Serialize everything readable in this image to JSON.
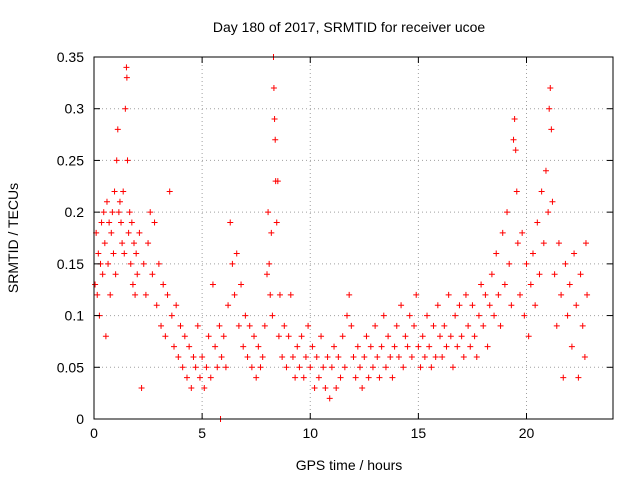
{
  "chart_data": {
    "type": "scatter",
    "title": "Day 180 of 2017, SRMTID for receiver ucoe",
    "xlabel": "GPS time / hours",
    "ylabel": "SRMTID / TECUs",
    "xlim": [
      0,
      24
    ],
    "ylim": [
      0,
      0.35
    ],
    "xticks": [
      0,
      5,
      10,
      15,
      20
    ],
    "yticks": [
      0,
      0.05,
      0.1,
      0.15,
      0.2,
      0.25,
      0.3,
      0.35
    ],
    "xtick_labels": [
      "0",
      "5",
      "10",
      "15",
      "20"
    ],
    "ytick_labels": [
      "0",
      "0.05",
      "0.1",
      "0.15",
      "0.2",
      "0.25",
      "0.3",
      "0.35"
    ],
    "grid": true,
    "marker": "+",
    "color": "#ff0000",
    "series": [
      {
        "name": "SRMTID",
        "points": [
          [
            0.05,
            0.13
          ],
          [
            0.1,
            0.18
          ],
          [
            0.15,
            0.12
          ],
          [
            0.2,
            0.16
          ],
          [
            0.25,
            0.1
          ],
          [
            0.3,
            0.15
          ],
          [
            0.35,
            0.19
          ],
          [
            0.4,
            0.14
          ],
          [
            0.45,
            0.2
          ],
          [
            0.5,
            0.17
          ],
          [
            0.55,
            0.08
          ],
          [
            0.6,
            0.21
          ],
          [
            0.65,
            0.15
          ],
          [
            0.7,
            0.19
          ],
          [
            0.75,
            0.12
          ],
          [
            0.8,
            0.18
          ],
          [
            0.85,
            0.2
          ],
          [
            0.9,
            0.16
          ],
          [
            0.95,
            0.22
          ],
          [
            1.0,
            0.14
          ],
          [
            1.05,
            0.25
          ],
          [
            1.1,
            0.28
          ],
          [
            1.15,
            0.2
          ],
          [
            1.2,
            0.21
          ],
          [
            1.25,
            0.19
          ],
          [
            1.3,
            0.17
          ],
          [
            1.35,
            0.22
          ],
          [
            1.4,
            0.16
          ],
          [
            1.45,
            0.3
          ],
          [
            1.5,
            0.34
          ],
          [
            1.52,
            0.33
          ],
          [
            1.55,
            0.25
          ],
          [
            1.6,
            0.18
          ],
          [
            1.65,
            0.2
          ],
          [
            1.7,
            0.15
          ],
          [
            1.75,
            0.19
          ],
          [
            1.8,
            0.13
          ],
          [
            1.85,
            0.17
          ],
          [
            1.9,
            0.12
          ],
          [
            1.95,
            0.16
          ],
          [
            2.0,
            0.14
          ],
          [
            2.1,
            0.18
          ],
          [
            2.2,
            0.03
          ],
          [
            2.3,
            0.15
          ],
          [
            2.4,
            0.12
          ],
          [
            2.5,
            0.17
          ],
          [
            2.6,
            0.2
          ],
          [
            2.7,
            0.14
          ],
          [
            2.8,
            0.19
          ],
          [
            2.9,
            0.11
          ],
          [
            3.0,
            0.15
          ],
          [
            3.1,
            0.09
          ],
          [
            3.2,
            0.13
          ],
          [
            3.3,
            0.08
          ],
          [
            3.4,
            0.12
          ],
          [
            3.5,
            0.22
          ],
          [
            3.6,
            0.1
          ],
          [
            3.7,
            0.07
          ],
          [
            3.8,
            0.11
          ],
          [
            3.9,
            0.06
          ],
          [
            4.0,
            0.09
          ],
          [
            4.1,
            0.05
          ],
          [
            4.2,
            0.08
          ],
          [
            4.3,
            0.04
          ],
          [
            4.4,
            0.07
          ],
          [
            4.5,
            0.03
          ],
          [
            4.6,
            0.06
          ],
          [
            4.7,
            0.05
          ],
          [
            4.8,
            0.09
          ],
          [
            4.9,
            0.04
          ],
          [
            5.0,
            0.06
          ],
          [
            5.1,
            0.03
          ],
          [
            5.2,
            0.05
          ],
          [
            5.3,
            0.08
          ],
          [
            5.4,
            0.04
          ],
          [
            5.5,
            0.13
          ],
          [
            5.6,
            0.07
          ],
          [
            5.7,
            0.05
          ],
          [
            5.8,
            0.09
          ],
          [
            5.85,
            0.0
          ],
          [
            5.9,
            0.06
          ],
          [
            6.0,
            0.08
          ],
          [
            6.1,
            0.05
          ],
          [
            6.2,
            0.11
          ],
          [
            6.3,
            0.19
          ],
          [
            6.4,
            0.15
          ],
          [
            6.5,
            0.12
          ],
          [
            6.6,
            0.16
          ],
          [
            6.7,
            0.09
          ],
          [
            6.8,
            0.13
          ],
          [
            6.9,
            0.07
          ],
          [
            7.0,
            0.1
          ],
          [
            7.1,
            0.06
          ],
          [
            7.2,
            0.09
          ],
          [
            7.3,
            0.05
          ],
          [
            7.4,
            0.08
          ],
          [
            7.5,
            0.04
          ],
          [
            7.6,
            0.07
          ],
          [
            7.7,
            0.05
          ],
          [
            7.8,
            0.06
          ],
          [
            7.9,
            0.09
          ],
          [
            8.0,
            0.14
          ],
          [
            8.05,
            0.2
          ],
          [
            8.1,
            0.15
          ],
          [
            8.15,
            0.12
          ],
          [
            8.2,
            0.18
          ],
          [
            8.25,
            0.1
          ],
          [
            8.3,
            0.35
          ],
          [
            8.32,
            0.32
          ],
          [
            8.35,
            0.29
          ],
          [
            8.38,
            0.27
          ],
          [
            8.4,
            0.23
          ],
          [
            8.45,
            0.19
          ],
          [
            8.5,
            0.23
          ],
          [
            8.55,
            0.08
          ],
          [
            8.6,
            0.12
          ],
          [
            8.7,
            0.06
          ],
          [
            8.8,
            0.09
          ],
          [
            8.9,
            0.05
          ],
          [
            9.0,
            0.08
          ],
          [
            9.1,
            0.12
          ],
          [
            9.2,
            0.06
          ],
          [
            9.3,
            0.04
          ],
          [
            9.4,
            0.07
          ],
          [
            9.5,
            0.05
          ],
          [
            9.6,
            0.08
          ],
          [
            9.7,
            0.04
          ],
          [
            9.8,
            0.06
          ],
          [
            9.9,
            0.09
          ],
          [
            10.0,
            0.05
          ],
          [
            10.1,
            0.07
          ],
          [
            10.2,
            0.03
          ],
          [
            10.3,
            0.06
          ],
          [
            10.4,
            0.04
          ],
          [
            10.5,
            0.08
          ],
          [
            10.6,
            0.05
          ],
          [
            10.7,
            0.03
          ],
          [
            10.8,
            0.06
          ],
          [
            10.9,
            0.02
          ],
          [
            11.0,
            0.05
          ],
          [
            11.1,
            0.07
          ],
          [
            11.2,
            0.03
          ],
          [
            11.3,
            0.06
          ],
          [
            11.4,
            0.04
          ],
          [
            11.5,
            0.08
          ],
          [
            11.6,
            0.05
          ],
          [
            11.7,
            0.1
          ],
          [
            11.8,
            0.12
          ],
          [
            11.9,
            0.09
          ],
          [
            12.0,
            0.06
          ],
          [
            12.1,
            0.04
          ],
          [
            12.2,
            0.07
          ],
          [
            12.3,
            0.05
          ],
          [
            12.4,
            0.03
          ],
          [
            12.5,
            0.06
          ],
          [
            12.6,
            0.08
          ],
          [
            12.7,
            0.04
          ],
          [
            12.8,
            0.07
          ],
          [
            12.9,
            0.05
          ],
          [
            13.0,
            0.09
          ],
          [
            13.1,
            0.06
          ],
          [
            13.2,
            0.04
          ],
          [
            13.3,
            0.07
          ],
          [
            13.4,
            0.1
          ],
          [
            13.5,
            0.05
          ],
          [
            13.6,
            0.08
          ],
          [
            13.7,
            0.06
          ],
          [
            13.8,
            0.04
          ],
          [
            13.9,
            0.07
          ],
          [
            14.0,
            0.09
          ],
          [
            14.1,
            0.06
          ],
          [
            14.2,
            0.11
          ],
          [
            14.3,
            0.05
          ],
          [
            14.4,
            0.08
          ],
          [
            14.5,
            0.07
          ],
          [
            14.6,
            0.1
          ],
          [
            14.7,
            0.06
          ],
          [
            14.8,
            0.09
          ],
          [
            14.9,
            0.12
          ],
          [
            15.0,
            0.07
          ],
          [
            15.1,
            0.05
          ],
          [
            15.2,
            0.08
          ],
          [
            15.3,
            0.06
          ],
          [
            15.4,
            0.1
          ],
          [
            15.5,
            0.07
          ],
          [
            15.6,
            0.05
          ],
          [
            15.7,
            0.09
          ],
          [
            15.8,
            0.06
          ],
          [
            15.9,
            0.11
          ],
          [
            16.0,
            0.08
          ],
          [
            16.1,
            0.06
          ],
          [
            16.2,
            0.09
          ],
          [
            16.3,
            0.07
          ],
          [
            16.4,
            0.12
          ],
          [
            16.5,
            0.08
          ],
          [
            16.6,
            0.05
          ],
          [
            16.7,
            0.1
          ],
          [
            16.8,
            0.07
          ],
          [
            16.9,
            0.11
          ],
          [
            17.0,
            0.08
          ],
          [
            17.1,
            0.06
          ],
          [
            17.2,
            0.12
          ],
          [
            17.3,
            0.09
          ],
          [
            17.4,
            0.07
          ],
          [
            17.5,
            0.11
          ],
          [
            17.6,
            0.08
          ],
          [
            17.7,
            0.06
          ],
          [
            17.8,
            0.1
          ],
          [
            17.9,
            0.13
          ],
          [
            18.0,
            0.09
          ],
          [
            18.1,
            0.12
          ],
          [
            18.2,
            0.07
          ],
          [
            18.3,
            0.11
          ],
          [
            18.4,
            0.14
          ],
          [
            18.5,
            0.1
          ],
          [
            18.6,
            0.16
          ],
          [
            18.7,
            0.12
          ],
          [
            18.8,
            0.09
          ],
          [
            18.9,
            0.18
          ],
          [
            19.0,
            0.13
          ],
          [
            19.1,
            0.2
          ],
          [
            19.2,
            0.15
          ],
          [
            19.3,
            0.11
          ],
          [
            19.4,
            0.27
          ],
          [
            19.45,
            0.29
          ],
          [
            19.5,
            0.26
          ],
          [
            19.55,
            0.22
          ],
          [
            19.6,
            0.17
          ],
          [
            19.7,
            0.12
          ],
          [
            19.8,
            0.18
          ],
          [
            19.9,
            0.1
          ],
          [
            20.0,
            0.15
          ],
          [
            20.1,
            0.08
          ],
          [
            20.2,
            0.13
          ],
          [
            20.3,
            0.16
          ],
          [
            20.4,
            0.11
          ],
          [
            20.5,
            0.19
          ],
          [
            20.6,
            0.14
          ],
          [
            20.7,
            0.22
          ],
          [
            20.8,
            0.17
          ],
          [
            20.9,
            0.24
          ],
          [
            21.0,
            0.2
          ],
          [
            21.05,
            0.3
          ],
          [
            21.1,
            0.32
          ],
          [
            21.15,
            0.28
          ],
          [
            21.2,
            0.21
          ],
          [
            21.3,
            0.14
          ],
          [
            21.4,
            0.09
          ],
          [
            21.5,
            0.17
          ],
          [
            21.6,
            0.12
          ],
          [
            21.7,
            0.04
          ],
          [
            21.8,
            0.15
          ],
          [
            21.9,
            0.1
          ],
          [
            22.0,
            0.13
          ],
          [
            22.1,
            0.07
          ],
          [
            22.2,
            0.16
          ],
          [
            22.3,
            0.11
          ],
          [
            22.4,
            0.04
          ],
          [
            22.5,
            0.14
          ],
          [
            22.6,
            0.09
          ],
          [
            22.7,
            0.06
          ],
          [
            22.75,
            0.17
          ],
          [
            22.8,
            0.12
          ]
        ]
      }
    ]
  }
}
